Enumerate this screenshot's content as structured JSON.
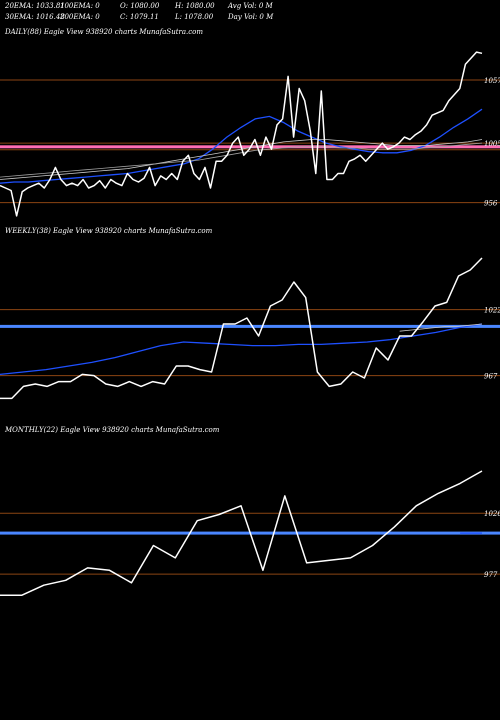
{
  "header": {
    "row1": [
      "20EMA: 1033.81",
      "100EMA: 0",
      "O: 1080.00",
      "H: 1080.00",
      "Avg Vol: 0  M"
    ],
    "row2": [
      "30EMA: 1016.48",
      "200EMA: 0",
      "C: 1079.11",
      "L: 1078.00",
      "Day Vol: 0  M"
    ]
  },
  "colors": {
    "background": "#000000",
    "price": "#ffffff",
    "ema": "#1e50ff",
    "level_line": "#8b4513",
    "pink_line": "#ff6eb4",
    "blue_band": "#4a86ff"
  },
  "chart_data": [
    {
      "type": "line",
      "title": "DAILY(88) Eagle  View  938920  charts MunafaSutra.com",
      "yticks": [
        {
          "value": 1057,
          "label": "1057"
        },
        {
          "value": 1005,
          "label": "1005"
        },
        {
          "value": 956,
          "label": "956"
        }
      ],
      "levels": [
        1057,
        1005,
        956
      ],
      "band": {
        "value": 1002,
        "color": "pink"
      },
      "ylim": [
        940,
        1090
      ],
      "series": [
        {
          "role": "price",
          "values": [
            970,
            968,
            966,
            945,
            965,
            968,
            970,
            972,
            968,
            975,
            985,
            975,
            970,
            972,
            970,
            975,
            968,
            970,
            974,
            968,
            975,
            972,
            970,
            980,
            975,
            973,
            976,
            985,
            970,
            978,
            975,
            980,
            975,
            990,
            995,
            980,
            975,
            985,
            968,
            990,
            990,
            995,
            1005,
            1010,
            995,
            1000,
            1008,
            995,
            1010,
            1000,
            1020,
            1025,
            1060,
            1010,
            1050,
            1040,
            1015,
            980,
            1048,
            975,
            975,
            980,
            980,
            990,
            992,
            995,
            990,
            995,
            1000,
            1005,
            1000,
            1002,
            1005,
            1010,
            1008,
            1012,
            1015,
            1020,
            1028,
            1030,
            1032,
            1040,
            1045,
            1050,
            1070,
            1075,
            1080,
            1079
          ]
        },
        {
          "role": "ema",
          "values": [
            972,
            973,
            973,
            974,
            975,
            976,
            977,
            978,
            979,
            980,
            982,
            984,
            986,
            988,
            992,
            1000,
            1010,
            1018,
            1025,
            1027,
            1022,
            1015,
            1010,
            1005,
            1002,
            1000,
            998,
            997,
            997,
            999,
            1003,
            1010,
            1018,
            1025,
            1033
          ]
        },
        {
          "role": "ema",
          "values": [
            975,
            976,
            977,
            978,
            979,
            980,
            981,
            982,
            983,
            984,
            986,
            988,
            990,
            992,
            994,
            996,
            998,
            1000,
            1002,
            1004,
            1006,
            1007,
            1008,
            1008,
            1007,
            1006,
            1005,
            1004,
            1003,
            1003,
            1003,
            1004,
            1005,
            1006,
            1008
          ]
        },
        {
          "role": "ema",
          "values": [
            977,
            978,
            979,
            980,
            981,
            982,
            983,
            984,
            985,
            986,
            987,
            988,
            989,
            990,
            991,
            993,
            995,
            997,
            999,
            1000,
            1001,
            1002,
            1002,
            1002,
            1001,
            1001,
            1000,
            1000,
            1000,
            1000,
            1001,
            1002,
            1003,
            1004,
            1005
          ]
        }
      ]
    },
    {
      "type": "line",
      "title": "WEEKLY(38) Eagle  View  938920  charts MunafaSutra.com",
      "yticks": [
        {
          "value": 1022,
          "label": "1022"
        },
        {
          "value": 967,
          "label": "967"
        }
      ],
      "levels": [
        1022,
        967
      ],
      "band": {
        "value": 1008,
        "color": "blue"
      },
      "ylim": [
        930,
        1080
      ],
      "series": [
        {
          "role": "price",
          "values": [
            948,
            948,
            958,
            960,
            958,
            962,
            962,
            968,
            967,
            960,
            958,
            962,
            958,
            962,
            960,
            975,
            975,
            972,
            970,
            1010,
            1010,
            1015,
            1000,
            1025,
            1030,
            1045,
            1032,
            970,
            958,
            960,
            970,
            965,
            990,
            980,
            1000,
            1000,
            1012,
            1025,
            1028,
            1050,
            1055,
            1065
          ]
        },
        {
          "role": "ema",
          "values": [
            968,
            970,
            972,
            975,
            978,
            982,
            987,
            992,
            995,
            994,
            993,
            992,
            992,
            993,
            993,
            994,
            995,
            997,
            1000,
            1003,
            1007,
            1010
          ]
        },
        {
          "role": "ema",
          "values": [
            1004,
            1005,
            1006,
            1007,
            1008,
            1008,
            1009,
            1010
          ]
        }
      ]
    },
    {
      "type": "line",
      "title": "MONTHLY(22) Eagle  View  938920  charts MunafaSutra.com",
      "yticks": [
        {
          "value": 1026,
          "label": "1026"
        },
        {
          "value": 977,
          "label": "977"
        }
      ],
      "levels": [
        1026,
        977
      ],
      "band": {
        "value": 1010,
        "color": "blue"
      },
      "ylim": [
        940,
        1085
      ],
      "series": [
        {
          "role": "price",
          "values": [
            960,
            960,
            968,
            972,
            982,
            980,
            970,
            1000,
            990,
            1020,
            1025,
            1032,
            980,
            1040,
            986,
            988,
            990,
            1000,
            1015,
            1032,
            1042,
            1050,
            1060
          ]
        },
        {
          "role": "ema",
          "values": [
            1010,
            1010
          ]
        }
      ]
    }
  ]
}
